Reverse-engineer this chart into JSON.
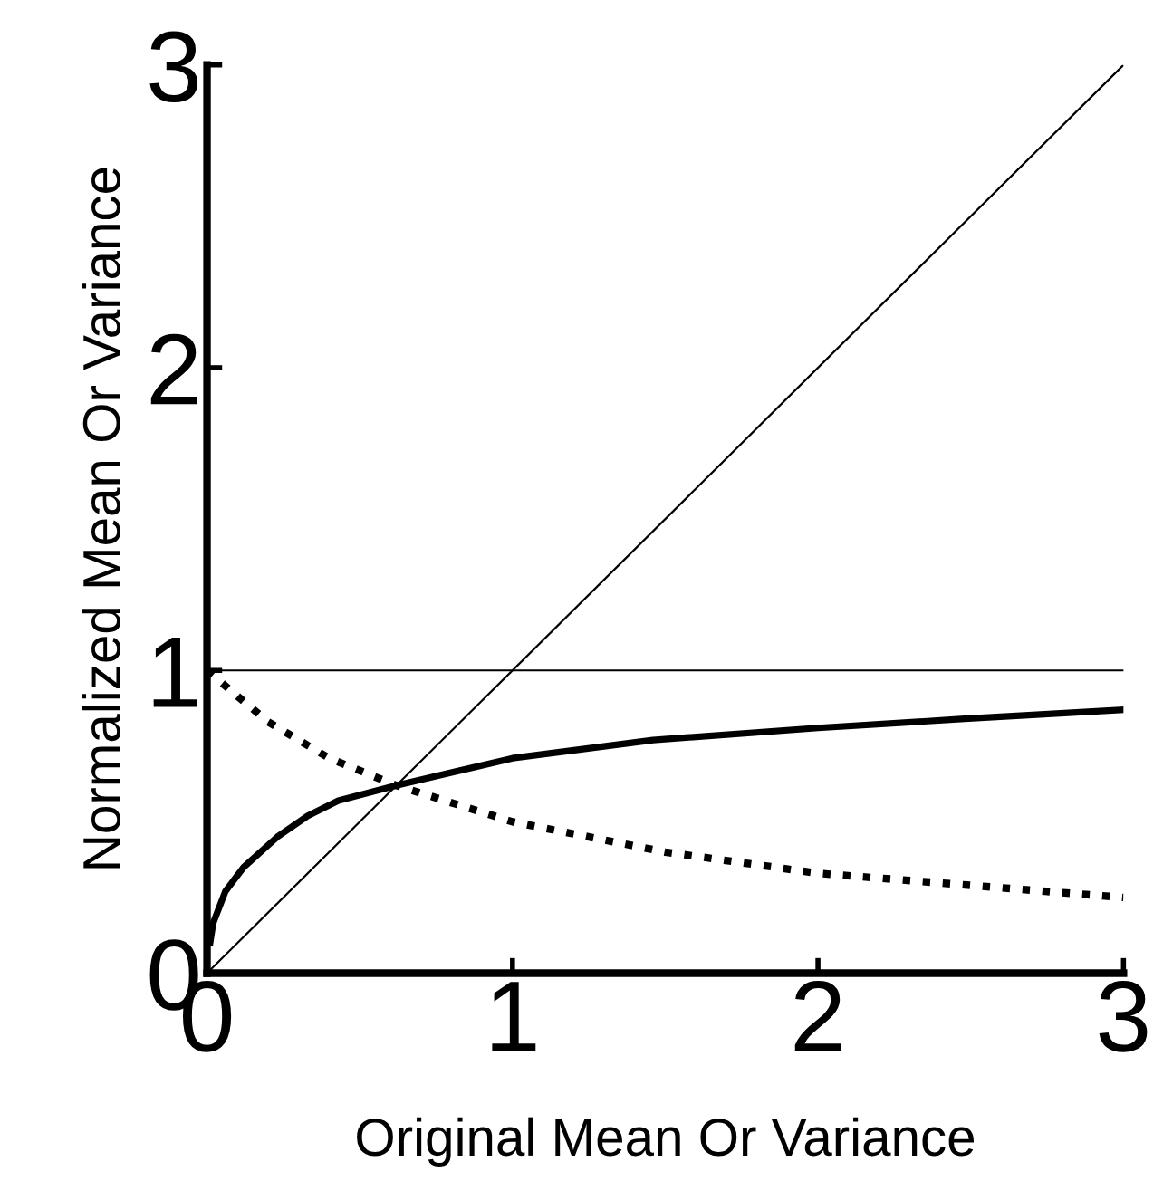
{
  "chart_data": {
    "type": "line",
    "xlabel": "Original Mean Or Variance",
    "ylabel": "Normalized Mean Or Variance",
    "xlim": [
      0,
      3
    ],
    "ylim": [
      0,
      3
    ],
    "xticks": [
      0,
      1,
      2,
      3
    ],
    "yticks": [
      0,
      1,
      2,
      3
    ],
    "grid": false,
    "legend": false,
    "series": [
      {
        "color": "#000000",
        "line_style": "solid",
        "x": [
          0,
          3
        ],
        "values": [
          0,
          3
        ]
      },
      {
        "color": "#000000",
        "line_style": "solid",
        "x": [
          0.01,
          0.02,
          0.06,
          0.12,
          0.23,
          0.33,
          0.43,
          0.62,
          1.0,
          1.46,
          2.0,
          2.48,
          3.0
        ],
        "values": [
          0.1,
          0.165,
          0.27,
          0.35,
          0.45,
          0.52,
          0.57,
          0.62,
          0.71,
          0.77,
          0.81,
          0.84,
          0.87
        ]
      },
      {
        "color": "#000000",
        "line_style": "dotted",
        "x": [
          0,
          0.2,
          0.4,
          0.62,
          1.0,
          1.5,
          2.0,
          2.5,
          3.0
        ],
        "values": [
          1.0,
          0.83,
          0.71,
          0.62,
          0.5,
          0.4,
          0.33,
          0.29,
          0.25
        ]
      }
    ],
    "ref_lines": [
      {
        "axis": "y",
        "value": 1,
        "color": "#000000",
        "line_style": "solid"
      }
    ]
  }
}
